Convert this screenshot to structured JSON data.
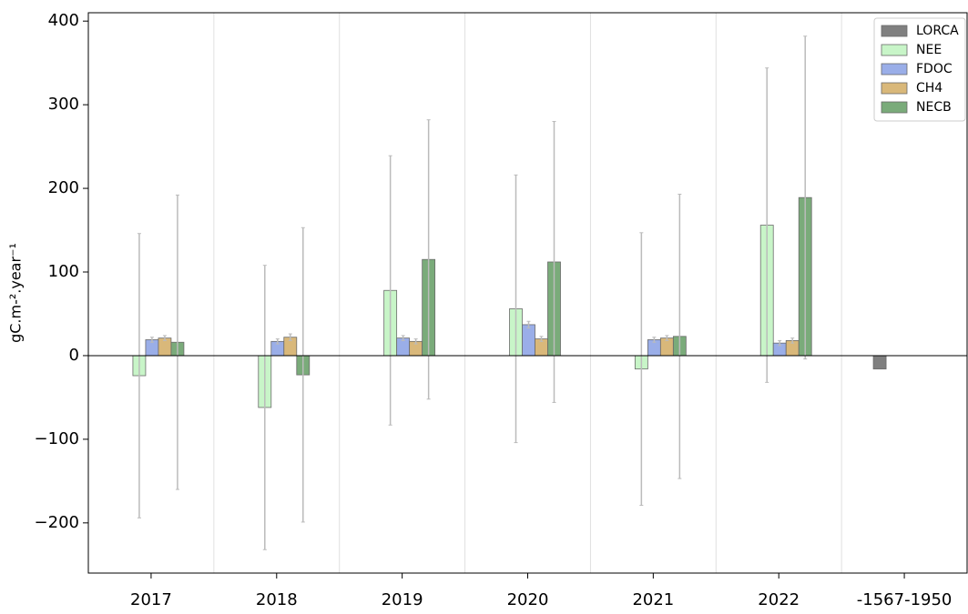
{
  "chart_data": {
    "type": "bar",
    "y_label": "gC.m-².year⁻¹",
    "categories": [
      "2017",
      "2018",
      "2019",
      "2020",
      "2021",
      "2022",
      "-1567-1950"
    ],
    "series": [
      {
        "name": "LORCA",
        "color": "#808080",
        "values": [
          null,
          null,
          null,
          null,
          null,
          null,
          -16
        ],
        "errors": [
          null,
          null,
          null,
          null,
          null,
          null,
          null
        ]
      },
      {
        "name": "NEE",
        "color": "#c8f5c8",
        "values": [
          -24,
          -62,
          78,
          56,
          -16,
          156,
          null
        ],
        "errors": [
          170,
          170,
          161,
          160,
          163,
          188,
          null
        ]
      },
      {
        "name": "FDOC",
        "color": "#9aaee8",
        "values": [
          19,
          17,
          21,
          37,
          19,
          15,
          null
        ],
        "errors": [
          3,
          3,
          3,
          4,
          3,
          3,
          null
        ]
      },
      {
        "name": "CH4",
        "color": "#d9b87a",
        "values": [
          21,
          22,
          17,
          20,
          21,
          18,
          null
        ],
        "errors": [
          3,
          4,
          3,
          3,
          3,
          3,
          null
        ]
      },
      {
        "name": "NECB",
        "color": "#7aab7a",
        "values": [
          16,
          -23,
          115,
          112,
          23,
          189,
          null
        ],
        "errors": [
          176,
          176,
          167,
          168,
          170,
          193,
          null
        ]
      }
    ],
    "ylim": [
      -260,
      410
    ],
    "yticks": [
      {
        "value": -200,
        "label": "−200"
      },
      {
        "value": -100,
        "label": "−100"
      },
      0,
      100,
      200,
      300,
      400
    ],
    "legend": "upper right"
  }
}
